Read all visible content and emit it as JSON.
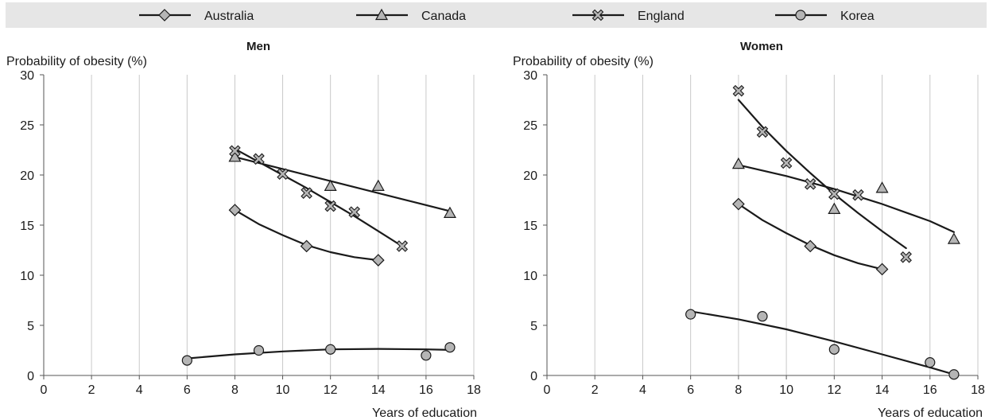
{
  "chart_data": [
    {
      "type": "scatter",
      "title": "Men",
      "ylabel": "Probability of obesity (%)",
      "xlabel": "Years of education",
      "xlim": [
        0,
        18
      ],
      "ylim": [
        0,
        30
      ],
      "xticks": [
        0,
        2,
        4,
        6,
        8,
        10,
        12,
        14,
        16,
        18
      ],
      "yticks": [
        0,
        5,
        10,
        15,
        20,
        25,
        30
      ],
      "grid": "vertical",
      "series": [
        {
          "name": "Australia",
          "marker": "diamond",
          "x": [
            8,
            11,
            14
          ],
          "y": [
            16.5,
            12.9,
            11.5
          ],
          "fit": [
            [
              8,
              16.5
            ],
            [
              9,
              15.1
            ],
            [
              10,
              14.0
            ],
            [
              11,
              13.0
            ],
            [
              12,
              12.3
            ],
            [
              13,
              11.8
            ],
            [
              14,
              11.5
            ]
          ]
        },
        {
          "name": "Canada",
          "marker": "triangle",
          "x": [
            8,
            12,
            14,
            17
          ],
          "y": [
            21.8,
            18.9,
            18.9,
            16.2
          ],
          "fit": [
            [
              8,
              21.8
            ],
            [
              17,
              16.4
            ]
          ]
        },
        {
          "name": "England",
          "marker": "cross",
          "x": [
            8,
            9,
            10,
            11,
            12,
            13,
            15
          ],
          "y": [
            22.4,
            21.6,
            20.1,
            18.2,
            16.9,
            16.3,
            12.9
          ],
          "fit": [
            [
              8,
              22.6
            ],
            [
              9,
              21.3
            ],
            [
              10,
              20.0
            ],
            [
              11,
              18.7
            ],
            [
              12,
              17.3
            ],
            [
              13,
              15.9
            ],
            [
              14,
              14.4
            ],
            [
              15,
              12.9
            ]
          ]
        },
        {
          "name": "Korea",
          "marker": "circle",
          "x": [
            6,
            9,
            12,
            16,
            17
          ],
          "y": [
            1.5,
            2.5,
            2.6,
            2.0,
            2.8
          ],
          "fit": [
            [
              6,
              1.7
            ],
            [
              8,
              2.1
            ],
            [
              10,
              2.4
            ],
            [
              12,
              2.6
            ],
            [
              14,
              2.65
            ],
            [
              16,
              2.6
            ],
            [
              17,
              2.55
            ]
          ]
        }
      ]
    },
    {
      "type": "scatter",
      "title": "Women",
      "ylabel": "Probability of obesity (%)",
      "xlabel": "Years of education",
      "xlim": [
        0,
        18
      ],
      "ylim": [
        0,
        30
      ],
      "xticks": [
        0,
        2,
        4,
        6,
        8,
        10,
        12,
        14,
        16,
        18
      ],
      "yticks": [
        0,
        5,
        10,
        15,
        20,
        25,
        30
      ],
      "grid": "vertical",
      "series": [
        {
          "name": "Australia",
          "marker": "diamond",
          "x": [
            8,
            11,
            14
          ],
          "y": [
            17.1,
            12.9,
            10.6
          ],
          "fit": [
            [
              8,
              17.1
            ],
            [
              9,
              15.5
            ],
            [
              10,
              14.2
            ],
            [
              11,
              13.0
            ],
            [
              12,
              12.0
            ],
            [
              13,
              11.2
            ],
            [
              14,
              10.6
            ]
          ]
        },
        {
          "name": "Canada",
          "marker": "triangle",
          "x": [
            8,
            12,
            14,
            17
          ],
          "y": [
            21.1,
            16.6,
            18.7,
            13.6
          ],
          "fit": [
            [
              8,
              21.0
            ],
            [
              10,
              19.9
            ],
            [
              12,
              18.6
            ],
            [
              14,
              17.1
            ],
            [
              16,
              15.4
            ],
            [
              17,
              14.3
            ]
          ]
        },
        {
          "name": "England",
          "marker": "cross",
          "x": [
            8,
            9,
            10,
            11,
            12,
            13,
            15
          ],
          "y": [
            28.4,
            24.3,
            21.2,
            19.1,
            18.1,
            18.0,
            11.8
          ],
          "fit": [
            [
              8,
              27.5
            ],
            [
              9,
              24.8
            ],
            [
              10,
              22.4
            ],
            [
              11,
              20.2
            ],
            [
              12,
              18.1
            ],
            [
              13,
              16.2
            ],
            [
              14,
              14.4
            ],
            [
              15,
              12.7
            ]
          ]
        },
        {
          "name": "Korea",
          "marker": "circle",
          "x": [
            6,
            9,
            12,
            16,
            17
          ],
          "y": [
            6.1,
            5.9,
            2.6,
            1.3,
            0.1
          ],
          "fit": [
            [
              6,
              6.4
            ],
            [
              8,
              5.6
            ],
            [
              10,
              4.6
            ],
            [
              12,
              3.4
            ],
            [
              14,
              2.1
            ],
            [
              16,
              0.8
            ],
            [
              17,
              0.1
            ]
          ]
        }
      ]
    }
  ],
  "legend": {
    "items": [
      {
        "label": "Australia",
        "marker": "diamond"
      },
      {
        "label": "Canada",
        "marker": "triangle"
      },
      {
        "label": "England",
        "marker": "cross"
      },
      {
        "label": "Korea",
        "marker": "circle"
      }
    ],
    "placement": "top"
  },
  "colors": {
    "line": "#1a1a1a",
    "marker_fill": "#b5b5b5",
    "grid": "#c8c8c8",
    "legend_bg": "#e6e6e6"
  }
}
